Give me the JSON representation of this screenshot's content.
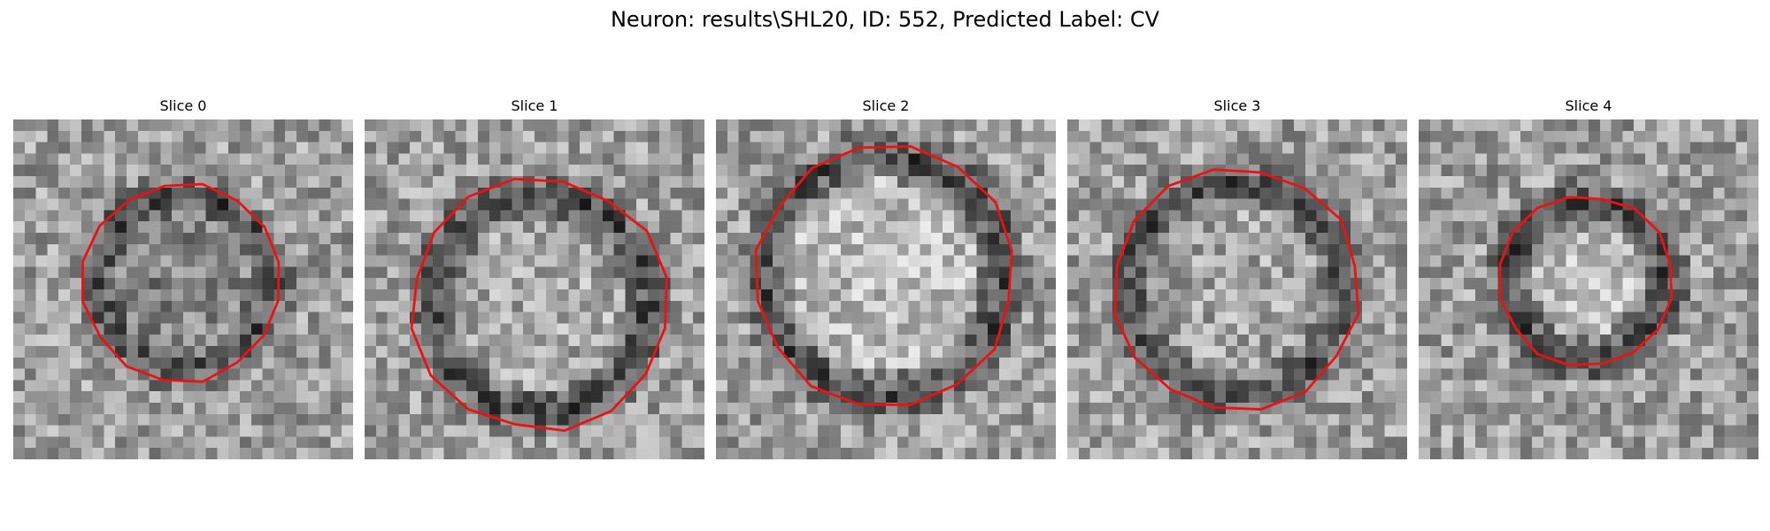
{
  "figure": {
    "title": "Neuron: results\\SHL20, ID: 552, Predicted Label: CV"
  },
  "panels": [
    {
      "title": "Slice 0",
      "outline_color": "#ee1111"
    },
    {
      "title": "Slice 1",
      "outline_color": "#ee1111"
    },
    {
      "title": "Slice 2",
      "outline_color": "#ee1111"
    },
    {
      "title": "Slice 3",
      "outline_color": "#ee1111"
    },
    {
      "title": "Slice 4",
      "outline_color": "#ee1111"
    }
  ]
}
